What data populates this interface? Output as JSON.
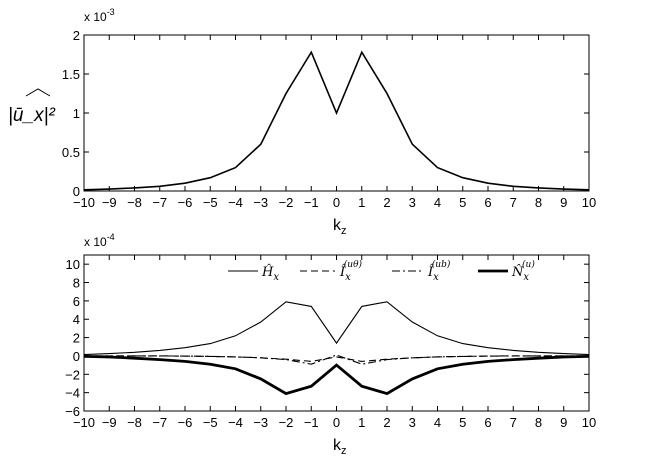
{
  "chart_data": [
    {
      "type": "line",
      "xlabel": "k",
      "xlabel_sub": "z",
      "ylabel": "|ū_x|²",
      "y_multiplier": "x 10",
      "y_multiplier_exp": "-3",
      "xlim": [
        -10,
        10
      ],
      "ylim": [
        0,
        2
      ],
      "x_ticks": [
        -10,
        -9,
        -8,
        -7,
        -6,
        -5,
        -4,
        -3,
        -2,
        -1,
        0,
        1,
        2,
        3,
        4,
        5,
        6,
        7,
        8,
        9,
        10
      ],
      "y_ticks": [
        0,
        0.5,
        1,
        1.5,
        2
      ],
      "grid": false,
      "x": [
        -10,
        -9,
        -8,
        -7,
        -6,
        -5,
        -4,
        -3,
        -2,
        -1,
        0,
        1,
        2,
        3,
        4,
        5,
        6,
        7,
        8,
        9,
        10
      ],
      "series": [
        {
          "values": [
            0.015,
            0.025,
            0.04,
            0.06,
            0.1,
            0.17,
            0.3,
            0.6,
            1.25,
            1.78,
            1.0,
            1.78,
            1.25,
            0.6,
            0.3,
            0.17,
            0.1,
            0.06,
            0.04,
            0.025,
            0.015
          ],
          "color": "#000000",
          "style": "solid",
          "width": 1.6
        }
      ]
    },
    {
      "type": "line",
      "xlabel": "k",
      "xlabel_sub": "z",
      "y_multiplier": "x 10",
      "y_multiplier_exp": "-4",
      "xlim": [
        -10,
        10
      ],
      "ylim": [
        -6,
        11
      ],
      "x_ticks": [
        -10,
        -9,
        -8,
        -7,
        -6,
        -5,
        -4,
        -3,
        -2,
        -1,
        0,
        1,
        2,
        3,
        4,
        5,
        6,
        7,
        8,
        9,
        10
      ],
      "y_ticks": [
        -6,
        -4,
        -2,
        0,
        2,
        4,
        6,
        8,
        10
      ],
      "grid": false,
      "legend_position": "top-right",
      "x": [
        -10,
        -9,
        -8,
        -7,
        -6,
        -5,
        -4,
        -3,
        -2,
        -1,
        0,
        1,
        2,
        3,
        4,
        5,
        6,
        7,
        8,
        9,
        10
      ],
      "series": [
        {
          "name": "Ĥ_x",
          "color": "#000000",
          "style": "solid",
          "width": 1.1,
          "values": [
            0.15,
            0.25,
            0.4,
            0.6,
            0.9,
            1.35,
            2.2,
            3.7,
            5.9,
            5.4,
            1.4,
            5.4,
            5.9,
            3.7,
            2.2,
            1.35,
            0.9,
            0.6,
            0.4,
            0.25,
            0.15
          ]
        },
        {
          "name": "Î_x^(uθ)",
          "color": "#000000",
          "style": "dashed",
          "width": 1.1,
          "values": [
            0,
            0,
            0,
            0,
            -0.02,
            -0.05,
            -0.1,
            -0.2,
            -0.35,
            -0.6,
            -0.1,
            -0.6,
            -0.35,
            -0.2,
            -0.1,
            -0.05,
            -0.02,
            0,
            0,
            0,
            0
          ]
        },
        {
          "name": "Î_x^(ub)",
          "color": "#000000",
          "style": "dashdot",
          "width": 1.1,
          "values": [
            0,
            0,
            0,
            0,
            -0.02,
            -0.05,
            -0.1,
            -0.2,
            -0.4,
            -0.9,
            0.1,
            -0.9,
            -0.4,
            -0.2,
            -0.1,
            -0.05,
            -0.02,
            0,
            0,
            0,
            0
          ]
        },
        {
          "name": "N̂_x^(u)",
          "color": "#000000",
          "style": "solid",
          "width": 2.8,
          "values": [
            -0.05,
            -0.12,
            -0.25,
            -0.4,
            -0.6,
            -0.9,
            -1.4,
            -2.5,
            -4.1,
            -3.3,
            -1.0,
            -3.3,
            -4.1,
            -2.5,
            -1.4,
            -0.9,
            -0.6,
            -0.4,
            -0.25,
            -0.12,
            -0.05
          ]
        }
      ],
      "legend": [
        {
          "base": "Ĥ",
          "sub": "x",
          "sup": ""
        },
        {
          "base": "Î",
          "sub": "x",
          "sup": "(uθ)"
        },
        {
          "base": "Î",
          "sub": "x",
          "sup": "(ub)"
        },
        {
          "base": "N̂",
          "sub": "x",
          "sup": "(u)"
        }
      ]
    }
  ]
}
